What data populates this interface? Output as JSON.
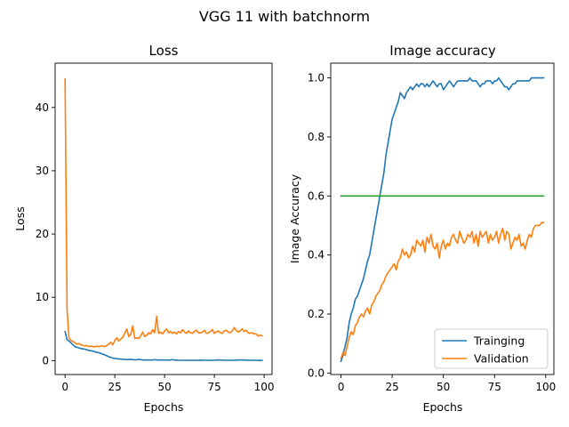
{
  "figure": {
    "suptitle": "VGG 11 with batchnorm"
  },
  "colors": {
    "training": "#1f77b4",
    "validation": "#ff7f0e",
    "baseline": "#2ca02c"
  },
  "chart_data": [
    {
      "type": "line",
      "title": "Loss",
      "xlabel": "Epochs",
      "ylabel": "Loss",
      "xlim": [
        -5,
        104
      ],
      "ylim": [
        -2.2,
        47
      ],
      "xticks": [
        0,
        25,
        50,
        75,
        100
      ],
      "yticks": [
        0,
        10,
        20,
        30,
        40
      ],
      "legend": "none",
      "series": [
        {
          "key": "training",
          "x": [
            0,
            1,
            2,
            3,
            4,
            5,
            6,
            7,
            8,
            9,
            10,
            11,
            12,
            13,
            14,
            15,
            16,
            17,
            18,
            19,
            20,
            21,
            22,
            23,
            24,
            25,
            26,
            27,
            28,
            29,
            30,
            31,
            32,
            33,
            34,
            35,
            36,
            37,
            38,
            39,
            40,
            41,
            42,
            43,
            44,
            45,
            46,
            47,
            48,
            49,
            50,
            51,
            52,
            53,
            54,
            55,
            56,
            57,
            58,
            59,
            60,
            61,
            62,
            63,
            64,
            65,
            66,
            67,
            68,
            69,
            70,
            71,
            72,
            73,
            74,
            75,
            76,
            77,
            78,
            79,
            80,
            81,
            82,
            83,
            84,
            85,
            86,
            87,
            88,
            89,
            90,
            91,
            92,
            93,
            94,
            95,
            96,
            97,
            98,
            99
          ],
          "y": [
            4.6,
            3.3,
            3.1,
            2.8,
            2.5,
            2.2,
            2.1,
            2.0,
            1.9,
            1.85,
            1.8,
            1.7,
            1.6,
            1.55,
            1.5,
            1.4,
            1.3,
            1.25,
            1.15,
            1.0,
            0.9,
            0.75,
            0.6,
            0.5,
            0.4,
            0.35,
            0.3,
            0.25,
            0.25,
            0.2,
            0.2,
            0.15,
            0.18,
            0.2,
            0.15,
            0.12,
            0.12,
            0.2,
            0.15,
            0.1,
            0.1,
            0.1,
            0.1,
            0.1,
            0.1,
            0.15,
            0.1,
            0.1,
            0.12,
            0.1,
            0.1,
            0.1,
            0.08,
            0.1,
            0.15,
            0.1,
            0.08,
            0.05,
            0.05,
            0.05,
            0.05,
            0.05,
            0.05,
            0.05,
            0.05,
            0.05,
            0.05,
            0.05,
            0.08,
            0.05,
            0.05,
            0.05,
            0.05,
            0.05,
            0.05,
            0.05,
            0.1,
            0.1,
            0.1,
            0.05,
            0.05,
            0.05,
            0.05,
            0.05,
            0.05,
            0.05,
            0.08,
            0.1,
            0.1,
            0.1,
            0.1,
            0.08,
            0.05,
            0.05,
            0.05,
            0.05,
            0.05,
            0.03,
            0.03,
            0.03
          ]
        },
        {
          "key": "validation",
          "x": [
            0,
            1,
            2,
            3,
            4,
            5,
            6,
            7,
            8,
            9,
            10,
            11,
            12,
            13,
            14,
            15,
            16,
            17,
            18,
            19,
            20,
            21,
            22,
            23,
            24,
            25,
            26,
            27,
            28,
            29,
            30,
            31,
            32,
            33,
            34,
            35,
            36,
            37,
            38,
            39,
            40,
            41,
            42,
            43,
            44,
            45,
            46,
            47,
            48,
            49,
            50,
            51,
            52,
            53,
            54,
            55,
            56,
            57,
            58,
            59,
            60,
            61,
            62,
            63,
            64,
            65,
            66,
            67,
            68,
            69,
            70,
            71,
            72,
            73,
            74,
            75,
            76,
            77,
            78,
            79,
            80,
            81,
            82,
            83,
            84,
            85,
            86,
            87,
            88,
            89,
            90,
            91,
            92,
            93,
            94,
            95,
            96,
            97,
            98,
            99
          ],
          "y": [
            44.5,
            8.0,
            3.5,
            3.2,
            3.0,
            2.8,
            2.6,
            2.7,
            2.5,
            2.4,
            2.3,
            2.4,
            2.2,
            2.3,
            2.2,
            2.2,
            2.3,
            2.2,
            2.3,
            2.3,
            2.2,
            2.4,
            2.6,
            2.9,
            2.5,
            3.2,
            3.6,
            3.1,
            3.4,
            3.7,
            4.3,
            5.0,
            3.8,
            4.1,
            5.5,
            3.5,
            3.6,
            3.5,
            3.9,
            4.5,
            3.8,
            4.0,
            4.4,
            4.2,
            4.9,
            4.4,
            7.0,
            4.3,
            4.5,
            4.2,
            4.7,
            5.0,
            4.4,
            4.6,
            4.3,
            4.5,
            4.2,
            4.6,
            4.4,
            4.9,
            4.5,
            4.3,
            4.7,
            4.4,
            4.3,
            4.6,
            4.8,
            4.4,
            4.4,
            4.5,
            4.8,
            4.3,
            4.4,
            4.6,
            4.9,
            4.3,
            4.5,
            4.7,
            4.4,
            4.3,
            4.7,
            4.8,
            4.5,
            4.4,
            4.7,
            5.2,
            4.8,
            4.5,
            4.7,
            5.0,
            4.6,
            4.8,
            4.4,
            4.3,
            4.4,
            4.2,
            4.2,
            3.9,
            4.0,
            3.9
          ]
        }
      ]
    },
    {
      "type": "line",
      "title": "Image accuracy",
      "xlabel": "Epochs",
      "ylabel": "Image Accuracy",
      "xlim": [
        -5,
        104
      ],
      "ylim": [
        -0.005,
        1.05
      ],
      "xticks": [
        0,
        25,
        50,
        75,
        100
      ],
      "yticks": [
        0.0,
        0.2,
        0.4,
        0.6,
        0.8,
        1.0
      ],
      "legend": "lower-right",
      "series": [
        {
          "key": "training",
          "name": "Trainging",
          "x": [
            0,
            1,
            2,
            3,
            4,
            5,
            6,
            7,
            8,
            9,
            10,
            11,
            12,
            13,
            14,
            15,
            16,
            17,
            18,
            19,
            20,
            21,
            22,
            23,
            24,
            25,
            26,
            27,
            28,
            29,
            30,
            31,
            32,
            33,
            34,
            35,
            36,
            37,
            38,
            39,
            40,
            41,
            42,
            43,
            44,
            45,
            46,
            47,
            48,
            49,
            50,
            51,
            52,
            53,
            54,
            55,
            56,
            57,
            58,
            59,
            60,
            61,
            62,
            63,
            64,
            65,
            66,
            67,
            68,
            69,
            70,
            71,
            72,
            73,
            74,
            75,
            76,
            77,
            78,
            79,
            80,
            81,
            82,
            83,
            84,
            85,
            86,
            87,
            88,
            89,
            90,
            91,
            92,
            93,
            94,
            95,
            96,
            97,
            98,
            99
          ],
          "y": [
            0.04,
            0.06,
            0.09,
            0.12,
            0.17,
            0.2,
            0.22,
            0.25,
            0.26,
            0.28,
            0.3,
            0.32,
            0.35,
            0.38,
            0.4,
            0.44,
            0.48,
            0.52,
            0.56,
            0.6,
            0.64,
            0.68,
            0.74,
            0.78,
            0.82,
            0.86,
            0.88,
            0.9,
            0.92,
            0.95,
            0.94,
            0.93,
            0.95,
            0.96,
            0.97,
            0.96,
            0.97,
            0.98,
            0.97,
            0.98,
            0.98,
            0.97,
            0.98,
            0.97,
            0.98,
            0.99,
            0.98,
            0.97,
            0.98,
            0.98,
            0.96,
            0.97,
            0.98,
            0.99,
            0.98,
            0.97,
            0.98,
            0.99,
            0.99,
            0.99,
            0.99,
            0.99,
            0.99,
            1.0,
            0.99,
            0.99,
            0.99,
            0.98,
            0.97,
            0.98,
            0.98,
            0.99,
            0.99,
            0.99,
            0.98,
            0.99,
            0.99,
            1.0,
            0.99,
            0.98,
            0.97,
            0.97,
            0.96,
            0.97,
            0.98,
            0.98,
            0.99,
            0.99,
            0.99,
            0.99,
            0.99,
            0.99,
            0.99,
            1.0,
            1.0,
            1.0,
            1.0,
            1.0,
            1.0,
            1.0
          ]
        },
        {
          "key": "validation",
          "name": "Validation",
          "x": [
            0,
            1,
            2,
            3,
            4,
            5,
            6,
            7,
            8,
            9,
            10,
            11,
            12,
            13,
            14,
            15,
            16,
            17,
            18,
            19,
            20,
            21,
            22,
            23,
            24,
            25,
            26,
            27,
            28,
            29,
            30,
            31,
            32,
            33,
            34,
            35,
            36,
            37,
            38,
            39,
            40,
            41,
            42,
            43,
            44,
            45,
            46,
            47,
            48,
            49,
            50,
            51,
            52,
            53,
            54,
            55,
            56,
            57,
            58,
            59,
            60,
            61,
            62,
            63,
            64,
            65,
            66,
            67,
            68,
            69,
            70,
            71,
            72,
            73,
            74,
            75,
            76,
            77,
            78,
            79,
            80,
            81,
            82,
            83,
            84,
            85,
            86,
            87,
            88,
            89,
            90,
            91,
            92,
            93,
            94,
            95,
            96,
            97,
            98,
            99
          ],
          "y": [
            0.05,
            0.07,
            0.06,
            0.09,
            0.12,
            0.14,
            0.13,
            0.16,
            0.17,
            0.19,
            0.2,
            0.19,
            0.21,
            0.22,
            0.2,
            0.23,
            0.24,
            0.26,
            0.27,
            0.28,
            0.3,
            0.31,
            0.33,
            0.34,
            0.35,
            0.36,
            0.37,
            0.35,
            0.38,
            0.39,
            0.42,
            0.4,
            0.41,
            0.39,
            0.4,
            0.43,
            0.41,
            0.45,
            0.44,
            0.43,
            0.45,
            0.41,
            0.46,
            0.44,
            0.47,
            0.43,
            0.42,
            0.44,
            0.39,
            0.43,
            0.45,
            0.42,
            0.44,
            0.43,
            0.46,
            0.47,
            0.45,
            0.44,
            0.48,
            0.46,
            0.44,
            0.45,
            0.47,
            0.46,
            0.48,
            0.44,
            0.47,
            0.43,
            0.48,
            0.46,
            0.47,
            0.48,
            0.44,
            0.47,
            0.45,
            0.46,
            0.48,
            0.44,
            0.47,
            0.49,
            0.45,
            0.48,
            0.47,
            0.42,
            0.44,
            0.46,
            0.45,
            0.47,
            0.43,
            0.44,
            0.42,
            0.45,
            0.47,
            0.46,
            0.49,
            0.5,
            0.5,
            0.5,
            0.51,
            0.51
          ]
        },
        {
          "key": "baseline",
          "x": [
            0,
            99
          ],
          "y": [
            0.6,
            0.6
          ]
        }
      ]
    }
  ]
}
